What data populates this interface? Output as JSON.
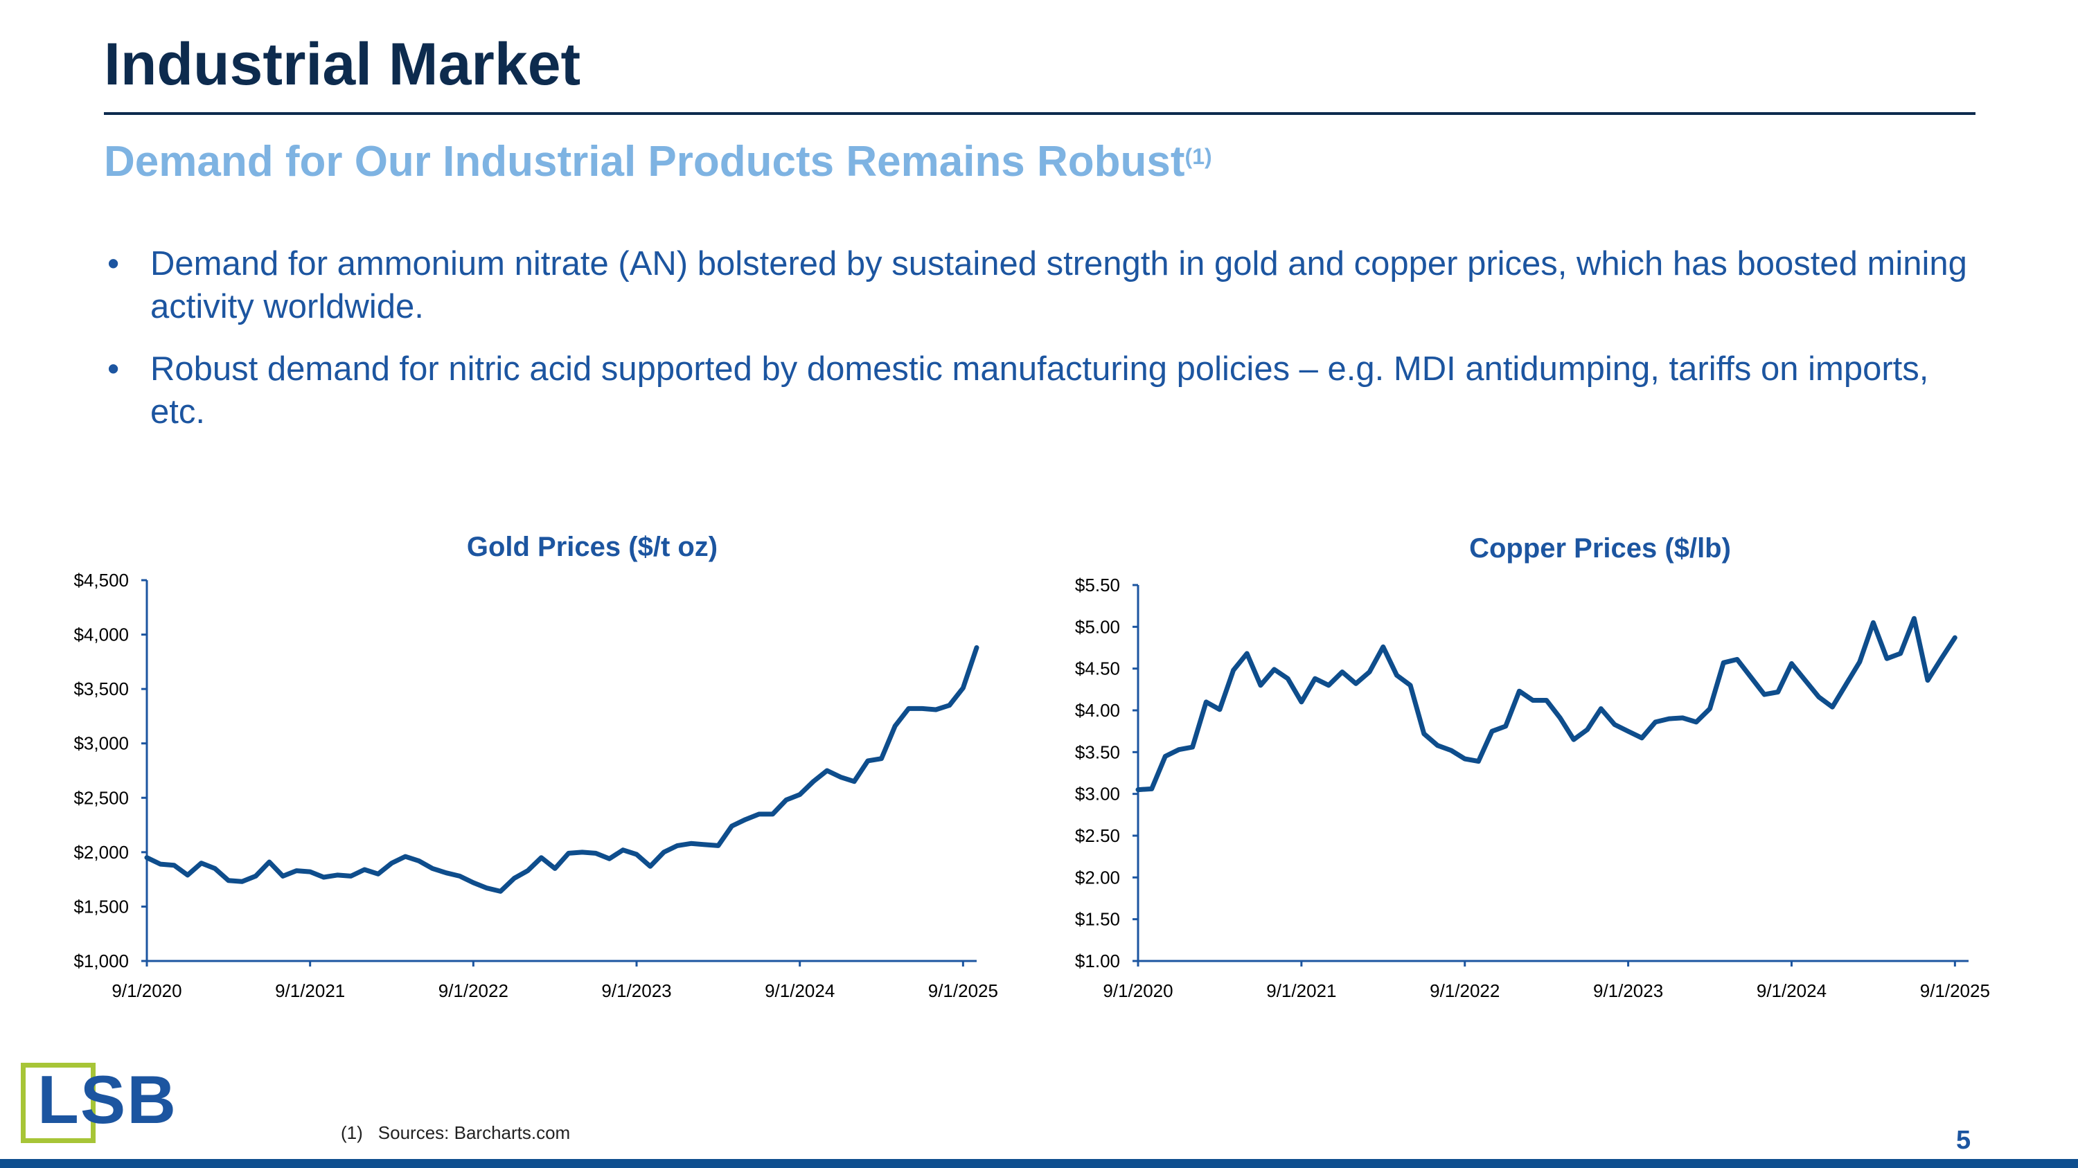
{
  "header": {
    "title": "Industrial Market",
    "subtitle": "Demand for Our Industrial Products Remains Robust",
    "subtitle_footnote_ref": "(1)"
  },
  "bullets": [
    "Demand for ammonium nitrate (AN) bolstered by sustained strength in gold and copper prices, which has boosted mining activity worldwide.",
    "Robust demand for nitric acid supported by domestic manufacturing policies – e.g. MDI antidumping, tariffs on imports, etc."
  ],
  "bullet_symbol": "•",
  "chart_data": [
    {
      "type": "line",
      "title": "Gold Prices ($/t oz)",
      "xlabel": "",
      "ylabel": "",
      "xlim": [
        0,
        61
      ],
      "ylim": [
        1000,
        4500
      ],
      "yticks": [
        1000,
        1500,
        2000,
        2500,
        3000,
        3500,
        4000,
        4500
      ],
      "ytick_labels": [
        "$1,000",
        "$1,500",
        "$2,000",
        "$2,500",
        "$3,000",
        "$3,500",
        "$4,000",
        "$4,500"
      ],
      "xticks": [
        0,
        12,
        24,
        36,
        48,
        60
      ],
      "xtick_labels": [
        "9/1/2020",
        "9/1/2021",
        "9/1/2022",
        "9/1/2023",
        "9/1/2024",
        "9/1/2025"
      ],
      "color": "#0e4d8c",
      "series": [
        {
          "name": "Gold",
          "values": [
            1950,
            1890,
            1880,
            1790,
            1900,
            1850,
            1740,
            1730,
            1780,
            1910,
            1780,
            1830,
            1820,
            1770,
            1790,
            1780,
            1840,
            1800,
            1900,
            1960,
            1920,
            1850,
            1810,
            1780,
            1720,
            1670,
            1640,
            1760,
            1830,
            1950,
            1850,
            1990,
            2000,
            1990,
            1940,
            2020,
            1980,
            1870,
            2000,
            2060,
            2080,
            2070,
            2060,
            2240,
            2300,
            2350,
            2350,
            2480,
            2530,
            2650,
            2750,
            2690,
            2650,
            2840,
            2860,
            3160,
            3320,
            3320,
            3310,
            3350,
            3510,
            3880
          ]
        }
      ]
    },
    {
      "type": "line",
      "title": "Copper Prices ($/lb)",
      "xlabel": "",
      "ylabel": "",
      "xlim": [
        0,
        61
      ],
      "ylim": [
        1.0,
        5.5
      ],
      "yticks": [
        1.0,
        1.5,
        2.0,
        2.5,
        3.0,
        3.5,
        4.0,
        4.5,
        5.0,
        5.5
      ],
      "ytick_labels": [
        "$1.00",
        "$1.50",
        "$2.00",
        "$2.50",
        "$3.00",
        "$3.50",
        "$4.00",
        "$4.50",
        "$5.00",
        "$5.50"
      ],
      "xticks": [
        0,
        12,
        24,
        36,
        48,
        60
      ],
      "xtick_labels": [
        "9/1/2020",
        "9/1/2021",
        "9/1/2022",
        "9/1/2023",
        "9/1/2024",
        "9/1/2025"
      ],
      "color": "#0e4d8c",
      "series": [
        {
          "name": "Copper",
          "values": [
            3.05,
            3.06,
            3.45,
            3.53,
            3.56,
            4.1,
            4.01,
            4.48,
            4.68,
            4.3,
            4.49,
            4.38,
            4.1,
            4.38,
            4.3,
            4.46,
            4.32,
            4.46,
            4.76,
            4.42,
            4.3,
            3.72,
            3.58,
            3.52,
            3.42,
            3.39,
            3.75,
            3.81,
            4.23,
            4.12,
            4.12,
            3.91,
            3.65,
            3.77,
            4.02,
            3.83,
            3.75,
            3.67,
            3.86,
            3.9,
            3.91,
            3.86,
            4.02,
            4.57,
            4.61,
            4.4,
            4.19,
            4.22,
            4.56,
            4.36,
            4.16,
            4.04,
            4.31,
            4.58,
            5.05,
            4.62,
            4.68,
            5.1,
            4.36,
            4.62,
            4.87
          ]
        }
      ]
    }
  ],
  "logo": {
    "text": "LSB"
  },
  "footnote": {
    "number": "(1)",
    "text": "Sources: Barcharts.com"
  },
  "page_number": "5"
}
